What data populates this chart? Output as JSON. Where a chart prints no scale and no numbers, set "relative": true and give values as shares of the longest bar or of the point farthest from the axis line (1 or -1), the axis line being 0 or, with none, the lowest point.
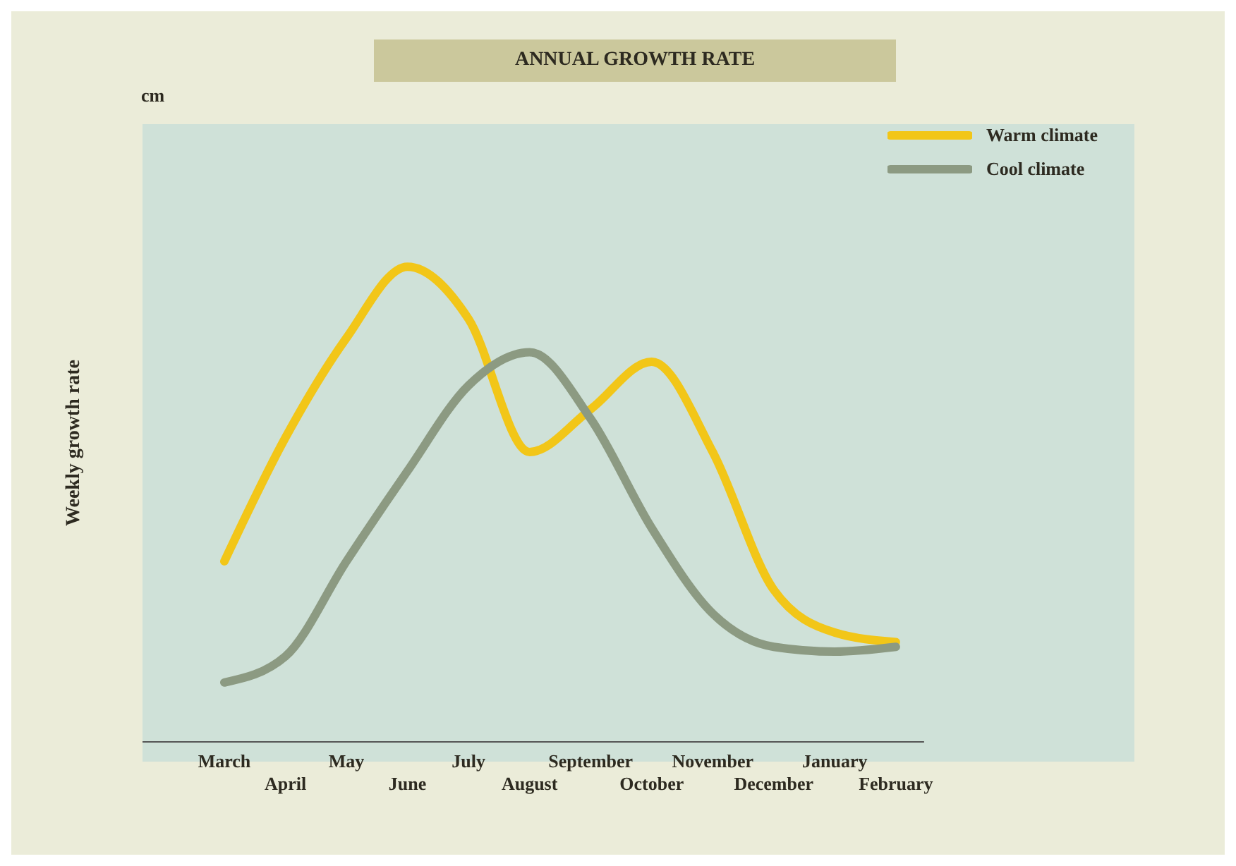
{
  "chart_data": {
    "type": "line",
    "title": "ANNUAL GROWTH RATE",
    "ylabel": "Weekly growth rate",
    "annotations": [
      "cm"
    ],
    "categories": [
      "March",
      "April",
      "May",
      "June",
      "July",
      "August",
      "September",
      "October",
      "November",
      "December",
      "January",
      "February"
    ],
    "relative": true,
    "legend": "top right",
    "marker": "none",
    "line_style": "solid",
    "grid": false,
    "series": [
      {
        "name": "Warm climate",
        "color": "#f2c618",
        "values": [
          0.38,
          0.64,
          0.85,
          1.0,
          0.89,
          0.61,
          0.7,
          0.8,
          0.61,
          0.32,
          0.23,
          0.21
        ]
      },
      {
        "name": "Cool climate",
        "color": "#8c9a82",
        "values": [
          0.125,
          0.18,
          0.38,
          0.57,
          0.75,
          0.82,
          0.68,
          0.45,
          0.27,
          0.2,
          0.19,
          0.2
        ]
      }
    ]
  }
}
